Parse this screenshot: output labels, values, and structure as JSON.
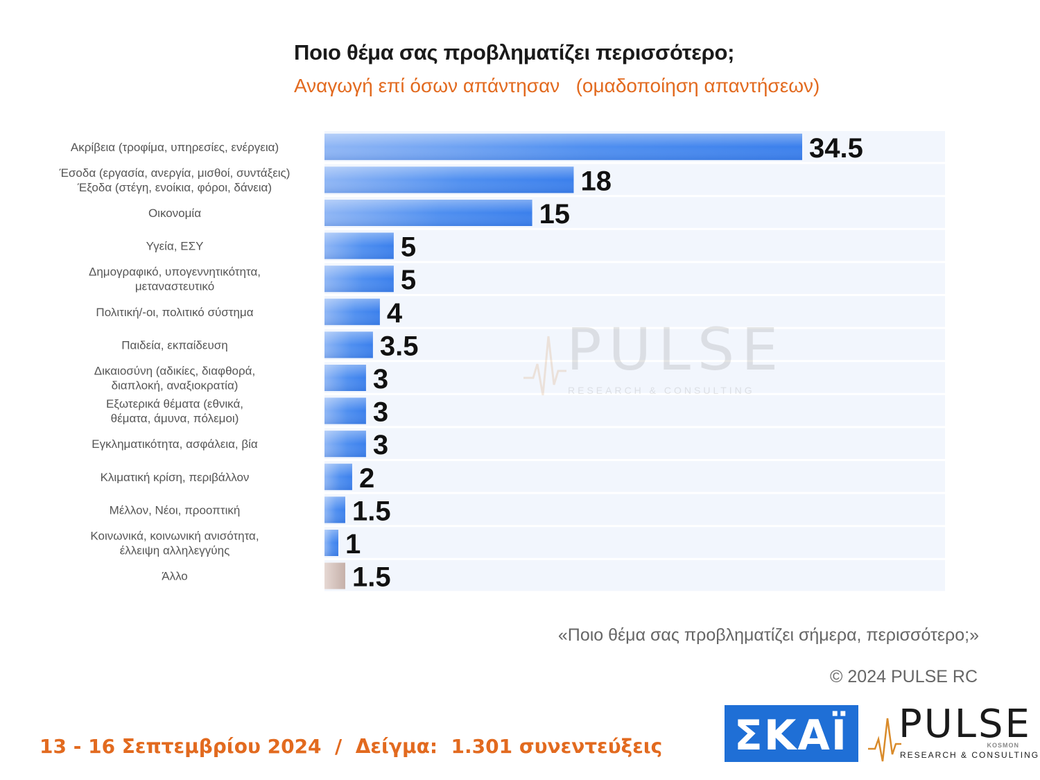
{
  "chart_data": {
    "type": "bar",
    "orientation": "horizontal",
    "title": "Ποιο θέμα σας προβληματίζει περισσότερο;",
    "subtitle": "Αναγωγή επί όσων απάντησαν   (ομαδοποίηση απαντήσεων)",
    "categories": [
      [
        "Ακρίβεια (τροφίμα, υπηρεσίες, ενέργεια)"
      ],
      [
        "Έσοδα (εργασία, ανεργία, μισθοί, συντάξεις)",
        "Έξοδα (στέγη, ενοίκια, φόροι, δάνεια)"
      ],
      [
        "Οικονομία"
      ],
      [
        "Υγεία, ΕΣΥ"
      ],
      [
        "Δημογραφικό, υπογεννητικότητα,",
        "μεταναστευτικό"
      ],
      [
        "Πολιτική/-οι, πολιτικό σύστημα"
      ],
      [
        "Παιδεία, εκπαίδευση"
      ],
      [
        "Δικαιοσύνη (αδικίες, διαφθορά,",
        "διαπλοκή, αναξιοκρατία)"
      ],
      [
        "Εξωτερικά θέματα (εθνικά,",
        "θέματα, άμυνα, πόλεμοι)"
      ],
      [
        "Εγκληματικότητα, ασφάλεια, βία"
      ],
      [
        "Κλιματική κρίση, περιβάλλον"
      ],
      [
        "Μέλλον, Νέοι, προοπτική"
      ],
      [
        "Κοινωνικά, κοινωνική ανισότητα,",
        "έλλειψη αλληλεγγύης"
      ],
      [
        "Άλλο"
      ]
    ],
    "values": [
      34.5,
      18,
      15,
      5,
      5,
      4,
      3.5,
      3,
      3,
      3,
      2,
      1.5,
      1,
      1.5
    ],
    "value_labels": [
      "34.5",
      "18",
      "15",
      "5",
      "5",
      "4",
      "3.5",
      "3",
      "3",
      "3",
      "2",
      "1.5",
      "1",
      "1.5"
    ],
    "colors": {
      "bar": "#3b82f0",
      "bar_light": "#dbe7fb",
      "other_bar": "#cdbab4",
      "row_band": "#f2f6fd",
      "label_text": "#555555",
      "value_text": "#111111"
    },
    "xlim": [
      0,
      45
    ],
    "grid": false,
    "legend": "none"
  },
  "watermark": {
    "word": "PULSE",
    "sub": "RESEARCH & CONSULTING"
  },
  "note": "«Ποιο θέμα σας προβληματίζει σήμερα, περισσότερο;»",
  "copyright": "© 2024 PULSE RC",
  "footer": "13 - 16 Σεπτεμβρίου 2024  /  Δείγμα:  1.301 συνεντεύξεις",
  "logos": {
    "skai": "ΣΚΑΪ",
    "pulse": "PULSE",
    "pulse_sub": "RESEARCH & CONSULTING",
    "pulse_kosmos": "KOSMON"
  }
}
